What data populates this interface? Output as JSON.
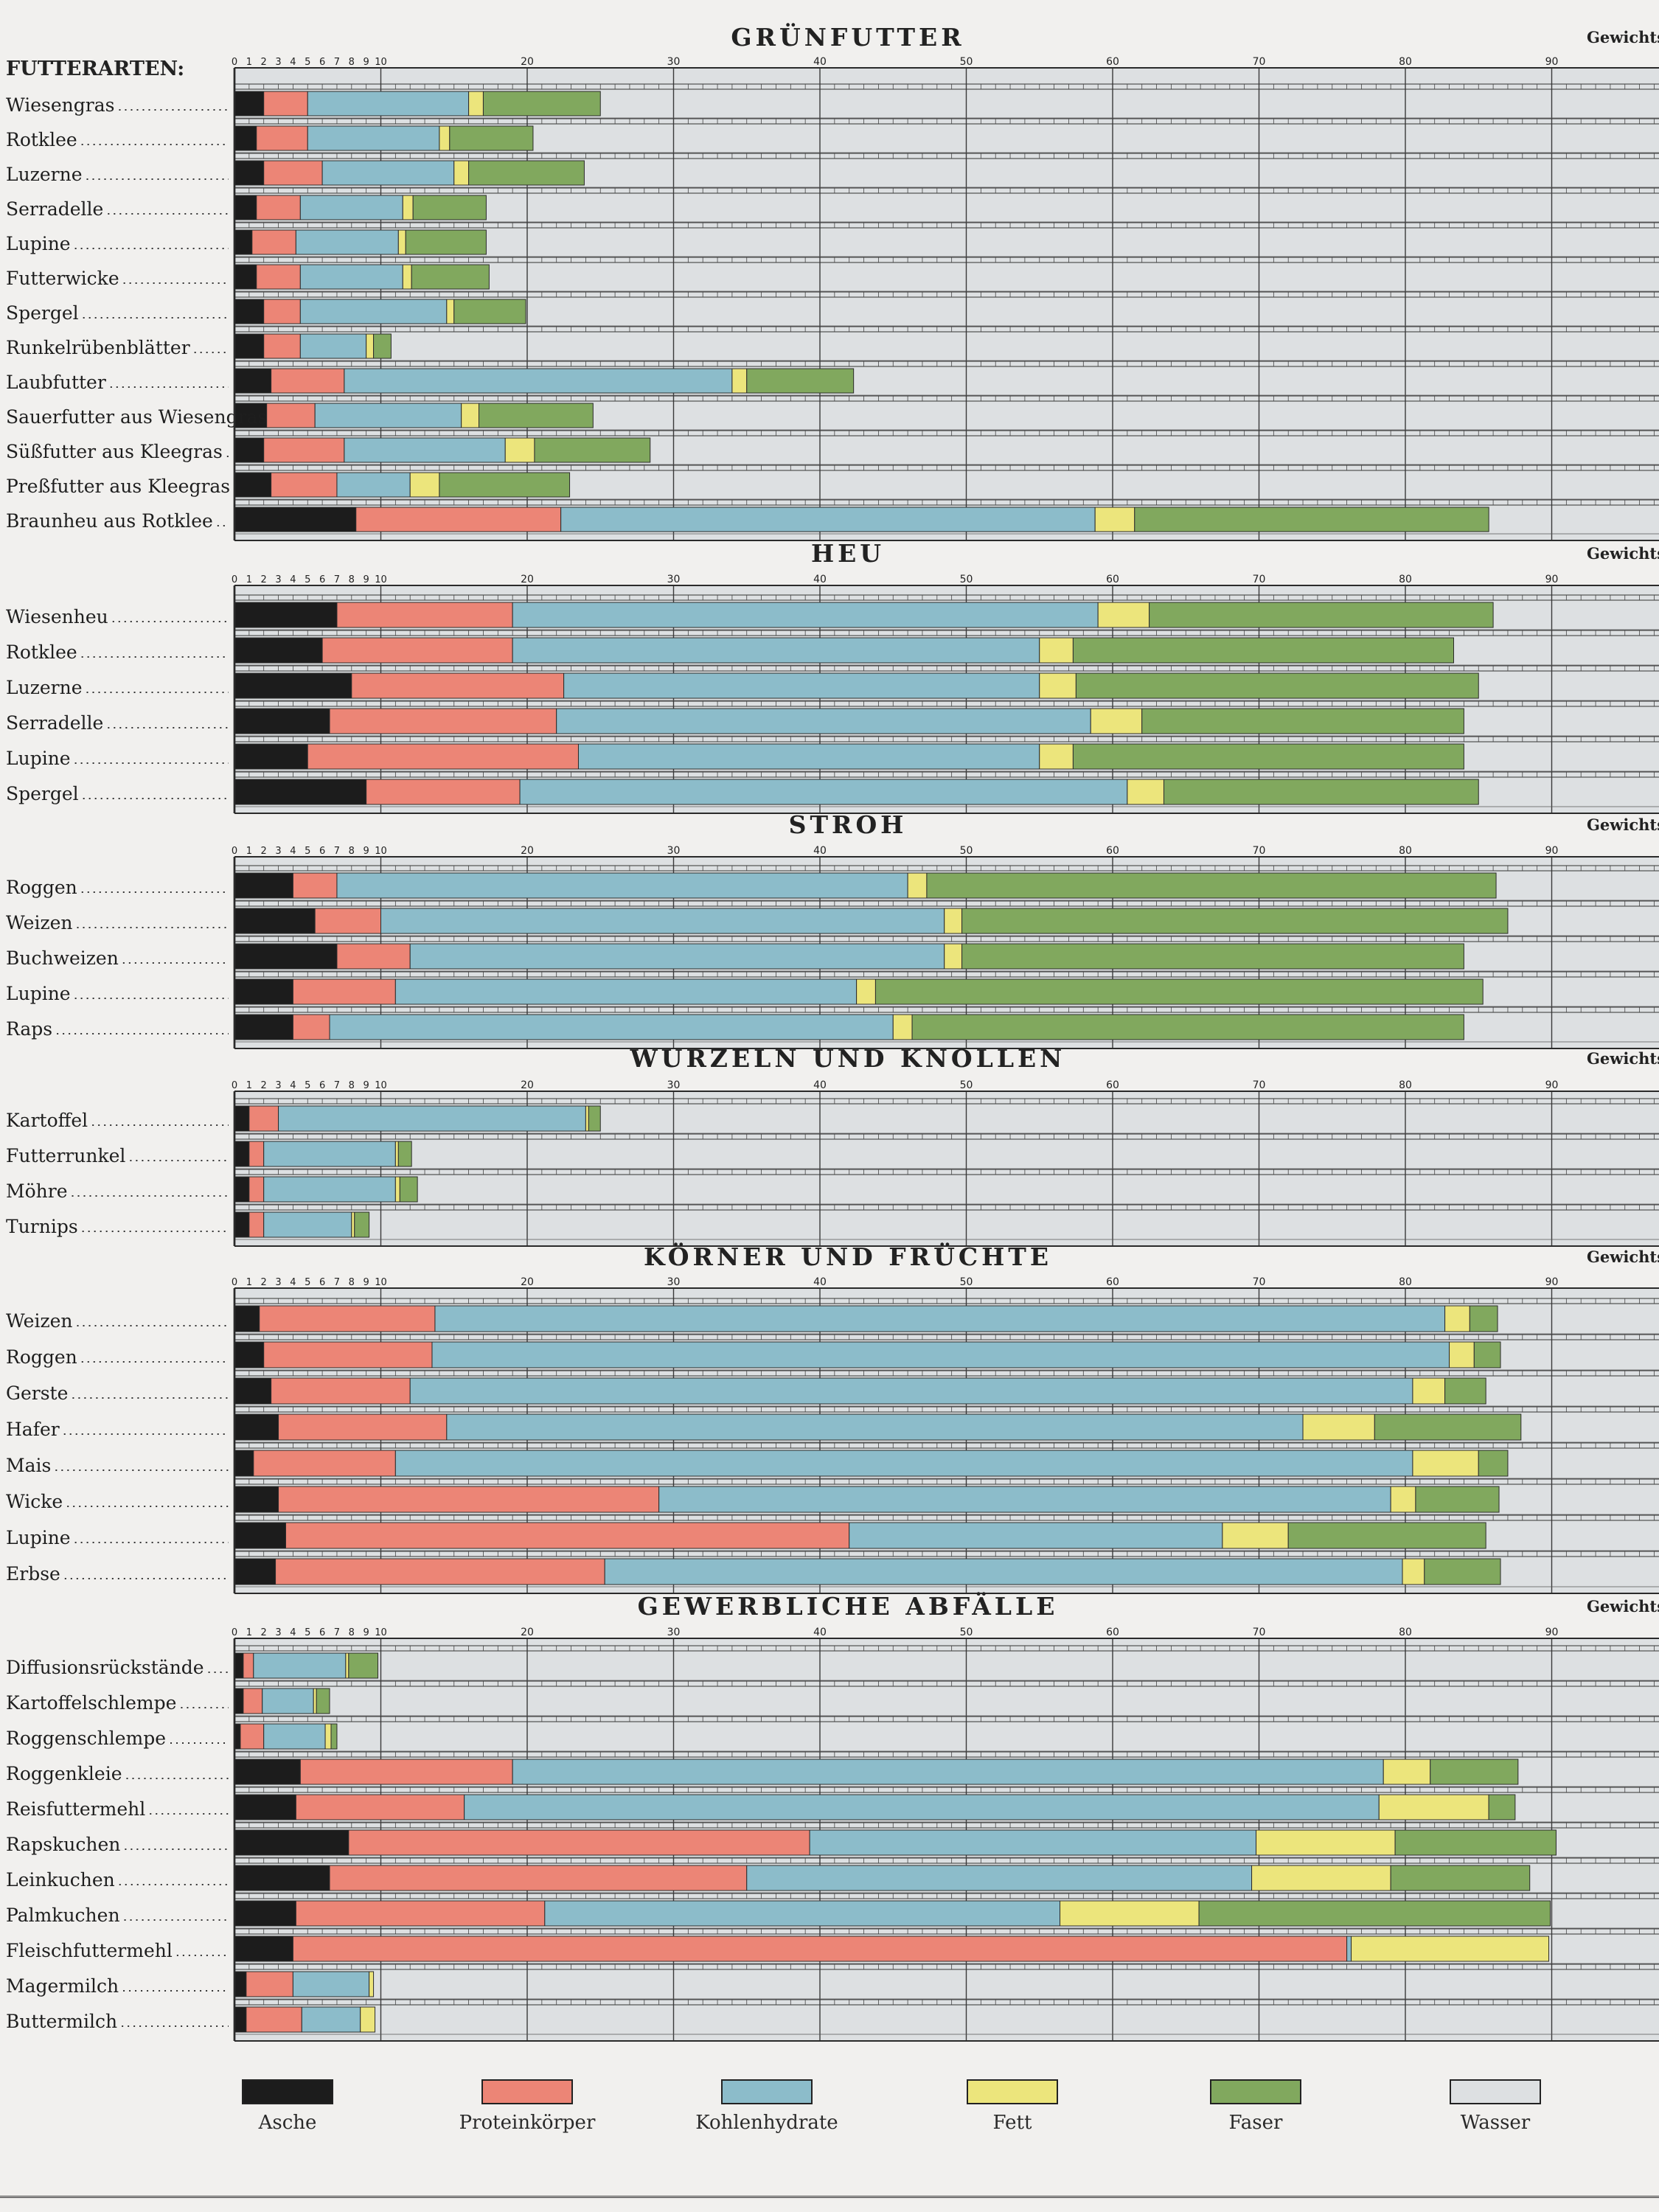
{
  "chart_data": {
    "type": "bar",
    "stacked": true,
    "orientation": "horizontal",
    "row_header": "FUTTERARTEN:",
    "unit_label": "Gewichts",
    "xlim": [
      0,
      100
    ],
    "tick_labels": [
      0,
      1,
      2,
      3,
      4,
      5,
      6,
      7,
      8,
      9,
      10,
      20,
      30,
      40,
      50,
      60,
      70,
      80,
      90
    ],
    "component_order": [
      "Asche",
      "Proteinkörper",
      "Kohlenhydrate",
      "Fett",
      "Faser",
      "Wasser"
    ],
    "colors": {
      "Asche": "#1c1c1c",
      "Proteinkörper": "#ec8576",
      "Kohlenhydrate": "#8cbcca",
      "Fett": "#ece57c",
      "Faser": "#81a85e",
      "Wasser": "#dde0e2"
    },
    "sections": [
      {
        "title": "GRÜNFUTTER",
        "rows": [
          {
            "label": "Wiesengras",
            "values": [
              2,
              3,
              11,
              1,
              8
            ]
          },
          {
            "label": "Rotklee",
            "values": [
              1.5,
              3.5,
              9,
              0.7,
              5.7
            ]
          },
          {
            "label": "Luzerne",
            "values": [
              2,
              4,
              9,
              1,
              7.9
            ]
          },
          {
            "label": "Serradelle",
            "values": [
              1.5,
              3,
              7,
              0.7,
              5
            ]
          },
          {
            "label": "Lupine",
            "values": [
              1.2,
              3,
              7,
              0.5,
              5.5
            ]
          },
          {
            "label": "Futterwicke",
            "values": [
              1.5,
              3,
              7,
              0.6,
              5.3
            ]
          },
          {
            "label": "Spergel",
            "values": [
              2,
              2.5,
              10,
              0.5,
              4.9
            ]
          },
          {
            "label": "Runkelrübenblätter",
            "values": [
              2,
              2.5,
              4.5,
              0.5,
              1.2
            ]
          },
          {
            "label": "Laubfutter",
            "values": [
              2.5,
              5,
              26.5,
              1,
              7.3
            ]
          },
          {
            "label": "Sauerfutter aus Wiesengras",
            "values": [
              2.2,
              3.3,
              10,
              1.2,
              7.8
            ]
          },
          {
            "label": "Süßfutter aus Kleegras",
            "values": [
              2,
              5.5,
              11,
              2,
              7.9
            ]
          },
          {
            "label": "Preßfutter aus Kleegras",
            "values": [
              2.5,
              4.5,
              5,
              2,
              8.9
            ]
          },
          {
            "label": "Braunheu aus Rotklee",
            "values": [
              8.3,
              14,
              36.5,
              2.7,
              24.2
            ]
          }
        ]
      },
      {
        "title": "HEU",
        "rows": [
          {
            "label": "Wiesenheu",
            "values": [
              7,
              12,
              40,
              3.5,
              23.5
            ]
          },
          {
            "label": "Rotklee",
            "values": [
              6,
              13,
              36,
              2.3,
              26
            ]
          },
          {
            "label": "Luzerne",
            "values": [
              8,
              14.5,
              32.5,
              2.5,
              27.5
            ]
          },
          {
            "label": "Serradelle",
            "values": [
              6.5,
              15.5,
              36.5,
              3.5,
              22
            ]
          },
          {
            "label": "Lupine",
            "values": [
              5,
              18.5,
              31.5,
              2.3,
              26.7
            ]
          },
          {
            "label": "Spergel",
            "values": [
              9,
              10.5,
              41.5,
              2.5,
              21.5
            ]
          }
        ]
      },
      {
        "title": "STROH",
        "rows": [
          {
            "label": "Roggen",
            "values": [
              4,
              3,
              39,
              1.3,
              38.9
            ]
          },
          {
            "label": "Weizen",
            "values": [
              5.5,
              4.5,
              38.5,
              1.2,
              37.3
            ]
          },
          {
            "label": "Buchweizen",
            "values": [
              7,
              5,
              36.5,
              1.2,
              34.3
            ]
          },
          {
            "label": "Lupine",
            "values": [
              4,
              7,
              31.5,
              1.3,
              41.5
            ]
          },
          {
            "label": "Raps",
            "values": [
              4,
              2.5,
              38.5,
              1.3,
              37.7
            ]
          }
        ]
      },
      {
        "title": "WURZELN UND KNOLLEN",
        "rows": [
          {
            "label": "Kartoffel",
            "values": [
              1,
              2,
              21,
              0.2,
              0.8
            ]
          },
          {
            "label": "Futterrunkel",
            "values": [
              1,
              1,
              9,
              0.2,
              0.9
            ]
          },
          {
            "label": "Möhre",
            "values": [
              1,
              1,
              9,
              0.3,
              1.2
            ]
          },
          {
            "label": "Turnips",
            "values": [
              1,
              1,
              6,
              0.2,
              1
            ]
          }
        ]
      },
      {
        "title": "KÖRNER UND FRÜCHTE",
        "rows": [
          {
            "label": "Weizen",
            "values": [
              1.7,
              12,
              69,
              1.7,
              1.9
            ]
          },
          {
            "label": "Roggen",
            "values": [
              2,
              11.5,
              69.5,
              1.7,
              1.8
            ]
          },
          {
            "label": "Gerste",
            "values": [
              2.5,
              9.5,
              68.5,
              2.2,
              2.8
            ]
          },
          {
            "label": "Hafer",
            "values": [
              3,
              11.5,
              58.5,
              4.9,
              10
            ]
          },
          {
            "label": "Mais",
            "values": [
              1.3,
              9.7,
              69.5,
              4.5,
              2
            ]
          },
          {
            "label": "Wicke",
            "values": [
              3,
              26,
              50,
              1.7,
              5.7
            ]
          },
          {
            "label": "Lupine",
            "values": [
              3.5,
              38.5,
              25.5,
              4.5,
              13.5
            ]
          },
          {
            "label": "Erbse",
            "values": [
              2.8,
              22.5,
              54.5,
              1.5,
              5.2
            ]
          }
        ]
      },
      {
        "title": "GEWERBLICHE ABFÄLLE",
        "rows": [
          {
            "label": "Diffusionsrückstände",
            "values": [
              0.6,
              0.7,
              6.3,
              0.2,
              2
            ]
          },
          {
            "label": "Kartoffelschlempe",
            "values": [
              0.6,
              1.3,
              3.5,
              0.2,
              0.9
            ]
          },
          {
            "label": "Roggenschlempe",
            "values": [
              0.4,
              1.6,
              4.2,
              0.4,
              0.4
            ]
          },
          {
            "label": "Roggenkleie",
            "values": [
              4.5,
              14.5,
              59.5,
              3.2,
              6
            ]
          },
          {
            "label": "Reisfuttermehl",
            "values": [
              4.2,
              11.5,
              62.5,
              7.5,
              1.8
            ]
          },
          {
            "label": "Rapskuchen",
            "values": [
              7.8,
              31.5,
              30.5,
              9.5,
              11
            ]
          },
          {
            "label": "Leinkuchen",
            "values": [
              6.5,
              28.5,
              34.5,
              9.5,
              9.5
            ]
          },
          {
            "label": "Palmkuchen",
            "values": [
              4.2,
              17,
              35.2,
              9.5,
              24
            ]
          },
          {
            "label": "Fleischfuttermehl",
            "values": [
              4,
              72,
              0.3,
              13.5,
              0
            ]
          },
          {
            "label": "Magermilch",
            "values": [
              0.8,
              3.2,
              5.2,
              0.3,
              0
            ]
          },
          {
            "label": "Buttermilch",
            "values": [
              0.8,
              3.8,
              4,
              1,
              0
            ]
          }
        ]
      }
    ]
  },
  "legend": [
    {
      "name": "Asche",
      "color": "#1c1c1c"
    },
    {
      "name": "Proteinkörper",
      "color": "#ec8576"
    },
    {
      "name": "Kohlenhydrate",
      "color": "#8cbcca"
    },
    {
      "name": "Fett",
      "color": "#ece57c"
    },
    {
      "name": "Faser",
      "color": "#81a85e"
    },
    {
      "name": "Wasser",
      "color": "#dde0e2"
    }
  ]
}
